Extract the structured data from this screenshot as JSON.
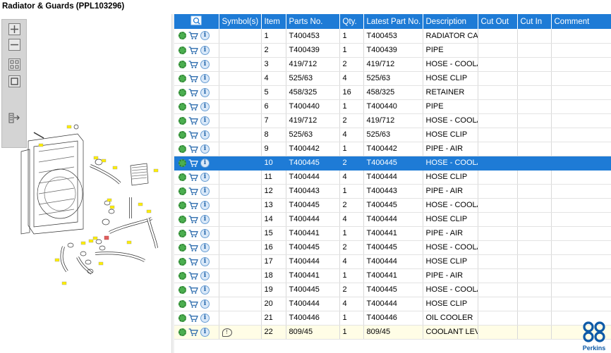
{
  "title": "Radiator & Guards (PPL103296)",
  "toolbar": {
    "buttons": [
      "zoom-in",
      "zoom-out",
      "fit",
      "actual-size",
      "export"
    ]
  },
  "grid": {
    "columns": [
      "",
      "Symbol(s)",
      "Item",
      "Parts No.",
      "Qty.",
      "Latest Part No.",
      "Description",
      "Cut Out",
      "Cut In",
      "Comment"
    ],
    "rows": [
      {
        "item": "1",
        "part": "T400453",
        "qty": "1",
        "latest": "T400453",
        "desc": "RADIATOR CAF",
        "sym": ""
      },
      {
        "item": "2",
        "part": "T400439",
        "qty": "1",
        "latest": "T400439",
        "desc": "PIPE",
        "sym": ""
      },
      {
        "item": "3",
        "part": "419/712",
        "qty": "2",
        "latest": "419/712",
        "desc": "HOSE - COOLA",
        "sym": ""
      },
      {
        "item": "4",
        "part": "525/63",
        "qty": "4",
        "latest": "525/63",
        "desc": "HOSE CLIP",
        "sym": ""
      },
      {
        "item": "5",
        "part": "458/325",
        "qty": "16",
        "latest": "458/325",
        "desc": "RETAINER",
        "sym": ""
      },
      {
        "item": "6",
        "part": "T400440",
        "qty": "1",
        "latest": "T400440",
        "desc": "PIPE",
        "sym": ""
      },
      {
        "item": "7",
        "part": "419/712",
        "qty": "2",
        "latest": "419/712",
        "desc": "HOSE - COOLA",
        "sym": ""
      },
      {
        "item": "8",
        "part": "525/63",
        "qty": "4",
        "latest": "525/63",
        "desc": "HOSE CLIP",
        "sym": ""
      },
      {
        "item": "9",
        "part": "T400442",
        "qty": "1",
        "latest": "T400442",
        "desc": "PIPE - AIR",
        "sym": ""
      },
      {
        "item": "10",
        "part": "T400445",
        "qty": "2",
        "latest": "T400445",
        "desc": "HOSE - COOLA",
        "sym": "",
        "selected": true
      },
      {
        "item": "11",
        "part": "T400444",
        "qty": "4",
        "latest": "T400444",
        "desc": "HOSE CLIP",
        "sym": ""
      },
      {
        "item": "12",
        "part": "T400443",
        "qty": "1",
        "latest": "T400443",
        "desc": "PIPE - AIR",
        "sym": ""
      },
      {
        "item": "13",
        "part": "T400445",
        "qty": "2",
        "latest": "T400445",
        "desc": "HOSE - COOLA",
        "sym": ""
      },
      {
        "item": "14",
        "part": "T400444",
        "qty": "4",
        "latest": "T400444",
        "desc": "HOSE CLIP",
        "sym": ""
      },
      {
        "item": "15",
        "part": "T400441",
        "qty": "1",
        "latest": "T400441",
        "desc": "PIPE - AIR",
        "sym": ""
      },
      {
        "item": "16",
        "part": "T400445",
        "qty": "2",
        "latest": "T400445",
        "desc": "HOSE - COOLA",
        "sym": ""
      },
      {
        "item": "17",
        "part": "T400444",
        "qty": "4",
        "latest": "T400444",
        "desc": "HOSE CLIP",
        "sym": ""
      },
      {
        "item": "18",
        "part": "T400441",
        "qty": "1",
        "latest": "T400441",
        "desc": "PIPE - AIR",
        "sym": ""
      },
      {
        "item": "19",
        "part": "T400445",
        "qty": "2",
        "latest": "T400445",
        "desc": "HOSE - COOLA",
        "sym": ""
      },
      {
        "item": "20",
        "part": "T400444",
        "qty": "4",
        "latest": "T400444",
        "desc": "HOSE CLIP",
        "sym": ""
      },
      {
        "item": "21",
        "part": "T400446",
        "qty": "1",
        "latest": "T400446",
        "desc": "OIL COOLER",
        "sym": ""
      },
      {
        "item": "22",
        "part": "809/45",
        "qty": "1",
        "latest": "809/45",
        "desc": "COOLANT LEVI",
        "sym": "note",
        "last": true
      }
    ]
  },
  "logo": {
    "text": "Perkins",
    "color": "#0d5aa7"
  },
  "colors": {
    "header": "#1e7bd6",
    "selected": "#1e7bd6",
    "gear": "#4caf50",
    "cart": "#1e62a8",
    "last_row": "#fffde6"
  }
}
